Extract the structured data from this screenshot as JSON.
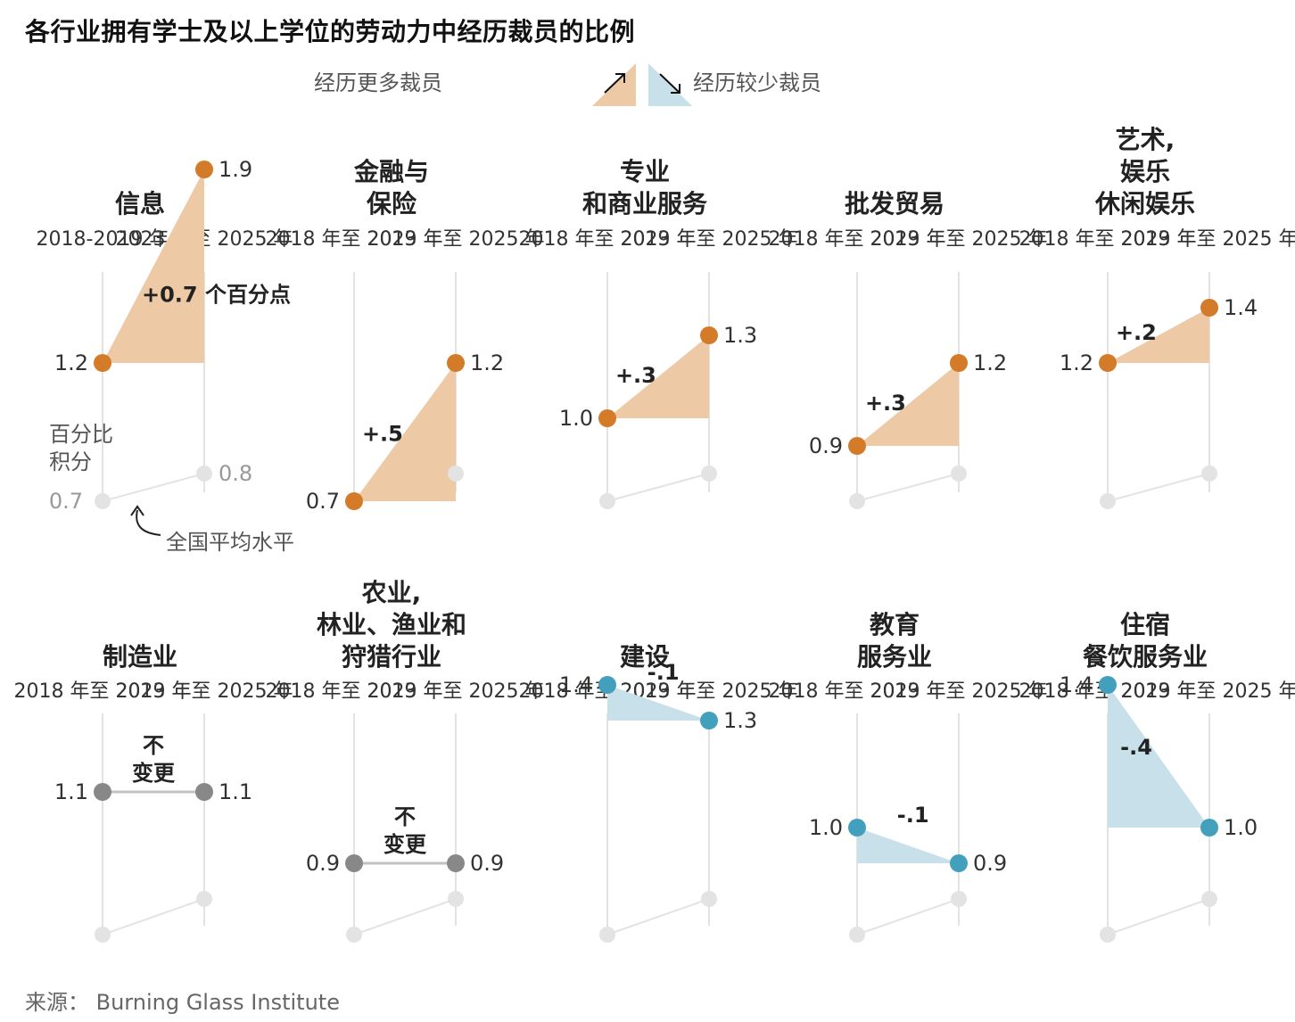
{
  "title": "各行业拥有学士及以上学位的劳动力中经历裁员的比例",
  "legend": {
    "more": "经历更多裁员",
    "less": "经历较少裁员"
  },
  "source": "来源： Burning Glass Institute",
  "annotations": {
    "unit_lines": [
      "百分比",
      "积分"
    ],
    "national_avg": "全国平均水平",
    "no_change_lines": [
      "不",
      "变更"
    ]
  },
  "colors": {
    "increase_fill": "#edc9a5",
    "increase_dot": "#d47b2a",
    "decrease_fill": "#c7e0ea",
    "decrease_dot": "#43a0bc",
    "nochange_dot": "#888888",
    "nochange_line": "#c2c2c2",
    "national_dot": "#e3e3e3",
    "axis_line": "#e3e3e3"
  },
  "chart_data": {
    "type": "slope",
    "period_labels_first_panel": [
      "2018-2019 年",
      "2023 年至 2025 年"
    ],
    "period_labels": [
      "2018 年至 2019 年",
      "2023 年至 2025 年"
    ],
    "panels": [
      {
        "name_lines": [
          "信息"
        ],
        "values": [
          1.2,
          1.9
        ],
        "labels": [
          "1.2",
          "1.9"
        ],
        "change": "+0.7 个百分点",
        "national": [
          0.7,
          0.8
        ],
        "national_labels": [
          "0.7",
          "0.8"
        ]
      },
      {
        "name_lines": [
          "金融与",
          "保险"
        ],
        "values": [
          0.7,
          1.2
        ],
        "labels": [
          "0.7",
          "1.2"
        ],
        "change": "+.5",
        "national": [
          0.7,
          0.8
        ]
      },
      {
        "name_lines": [
          "专业",
          "和商业服务"
        ],
        "values": [
          1.0,
          1.3
        ],
        "labels": [
          "1.0",
          "1.3"
        ],
        "change": "+.3",
        "national": [
          0.7,
          0.8
        ]
      },
      {
        "name_lines": [
          "批发贸易"
        ],
        "values": [
          0.9,
          1.2
        ],
        "labels": [
          "0.9",
          "1.2"
        ],
        "change": "+.3",
        "national": [
          0.7,
          0.8
        ]
      },
      {
        "name_lines": [
          "艺术,",
          "娱乐",
          "休闲娱乐"
        ],
        "values": [
          1.2,
          1.4
        ],
        "labels": [
          "1.2",
          "1.4"
        ],
        "change": "+.2",
        "national": [
          0.7,
          0.8
        ]
      },
      {
        "name_lines": [
          "制造业"
        ],
        "values": [
          1.1,
          1.1
        ],
        "labels": [
          "1.1",
          "1.1"
        ],
        "change": "",
        "national": [
          0.7,
          0.8
        ]
      },
      {
        "name_lines": [
          "农业,",
          "林业、渔业和",
          "狩猎行业"
        ],
        "values": [
          0.9,
          0.9
        ],
        "labels": [
          "0.9",
          "0.9"
        ],
        "change": "",
        "national": [
          0.7,
          0.8
        ]
      },
      {
        "name_lines": [
          "建设"
        ],
        "values": [
          1.4,
          1.3
        ],
        "labels": [
          "1.4",
          "1.3"
        ],
        "change": "-.1",
        "national": [
          0.7,
          0.8
        ]
      },
      {
        "name_lines": [
          "教育",
          "服务业"
        ],
        "values": [
          1.0,
          0.9
        ],
        "labels": [
          "1.0",
          "0.9"
        ],
        "change": "-.1",
        "national": [
          0.7,
          0.8
        ]
      },
      {
        "name_lines": [
          "住宿",
          "餐饮服务业"
        ],
        "values": [
          1.4,
          1.0
        ],
        "labels": [
          "1.4",
          "1.0"
        ],
        "change": "-.4",
        "national": [
          0.7,
          0.8
        ]
      }
    ]
  }
}
